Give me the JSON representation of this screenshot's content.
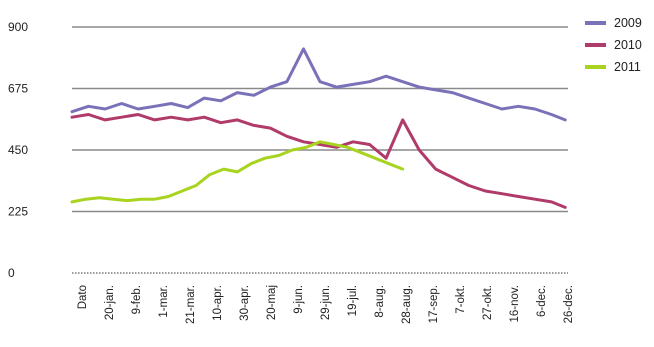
{
  "chart_data": {
    "type": "line",
    "title": "",
    "xlabel": "",
    "ylabel": "",
    "ylim": [
      0,
      900
    ],
    "yticks": [
      0,
      225,
      450,
      675,
      900
    ],
    "grid": "horizontal",
    "legend_position": "top-right",
    "x_tick_labels": [
      "Dato",
      "20-jan.",
      "9-feb.",
      "1-mar.",
      "21-mar.",
      "10-apr.",
      "30-apr.",
      "20-maj",
      "9-jun.",
      "29-jun.",
      "19-jul.",
      "8-aug.",
      "28-aug.",
      "17-sep.",
      "7-okt.",
      "27-okt.",
      "16-nov.",
      "6-dec.",
      "26-dec."
    ],
    "x_domain": [
      0,
      360
    ],
    "series": [
      {
        "name": "2009",
        "color": "#7a72b8",
        "x": [
          0,
          12,
          24,
          36,
          48,
          60,
          72,
          84,
          96,
          108,
          120,
          132,
          144,
          156,
          168,
          180,
          192,
          204,
          216,
          228,
          240,
          252,
          264,
          276,
          288,
          300,
          312,
          324,
          336,
          348,
          358
        ],
        "y": [
          590,
          610,
          600,
          620,
          600,
          610,
          620,
          605,
          640,
          630,
          660,
          650,
          680,
          700,
          820,
          700,
          680,
          690,
          700,
          720,
          700,
          680,
          670,
          660,
          640,
          620,
          600,
          610,
          600,
          580,
          560
        ]
      },
      {
        "name": "2010",
        "color": "#b03a6a",
        "x": [
          0,
          12,
          24,
          36,
          48,
          60,
          72,
          84,
          96,
          108,
          120,
          132,
          144,
          156,
          168,
          180,
          192,
          204,
          216,
          228,
          240,
          252,
          264,
          276,
          288,
          300,
          312,
          324,
          336,
          348,
          358
        ],
        "y": [
          570,
          580,
          560,
          570,
          580,
          560,
          570,
          560,
          570,
          550,
          560,
          540,
          530,
          500,
          480,
          470,
          460,
          480,
          470,
          420,
          560,
          450,
          380,
          350,
          320,
          300,
          290,
          280,
          270,
          260,
          240
        ]
      },
      {
        "name": "2011",
        "color": "#a8d420",
        "x": [
          0,
          10,
          20,
          30,
          40,
          50,
          60,
          70,
          80,
          90,
          100,
          110,
          120,
          130,
          140,
          150,
          160,
          170,
          180,
          190,
          200,
          210,
          220,
          230,
          240
        ],
        "y": [
          260,
          270,
          275,
          270,
          265,
          270,
          270,
          280,
          300,
          320,
          360,
          380,
          370,
          400,
          420,
          430,
          450,
          460,
          480,
          470,
          460,
          440,
          420,
          400,
          380
        ]
      }
    ]
  }
}
